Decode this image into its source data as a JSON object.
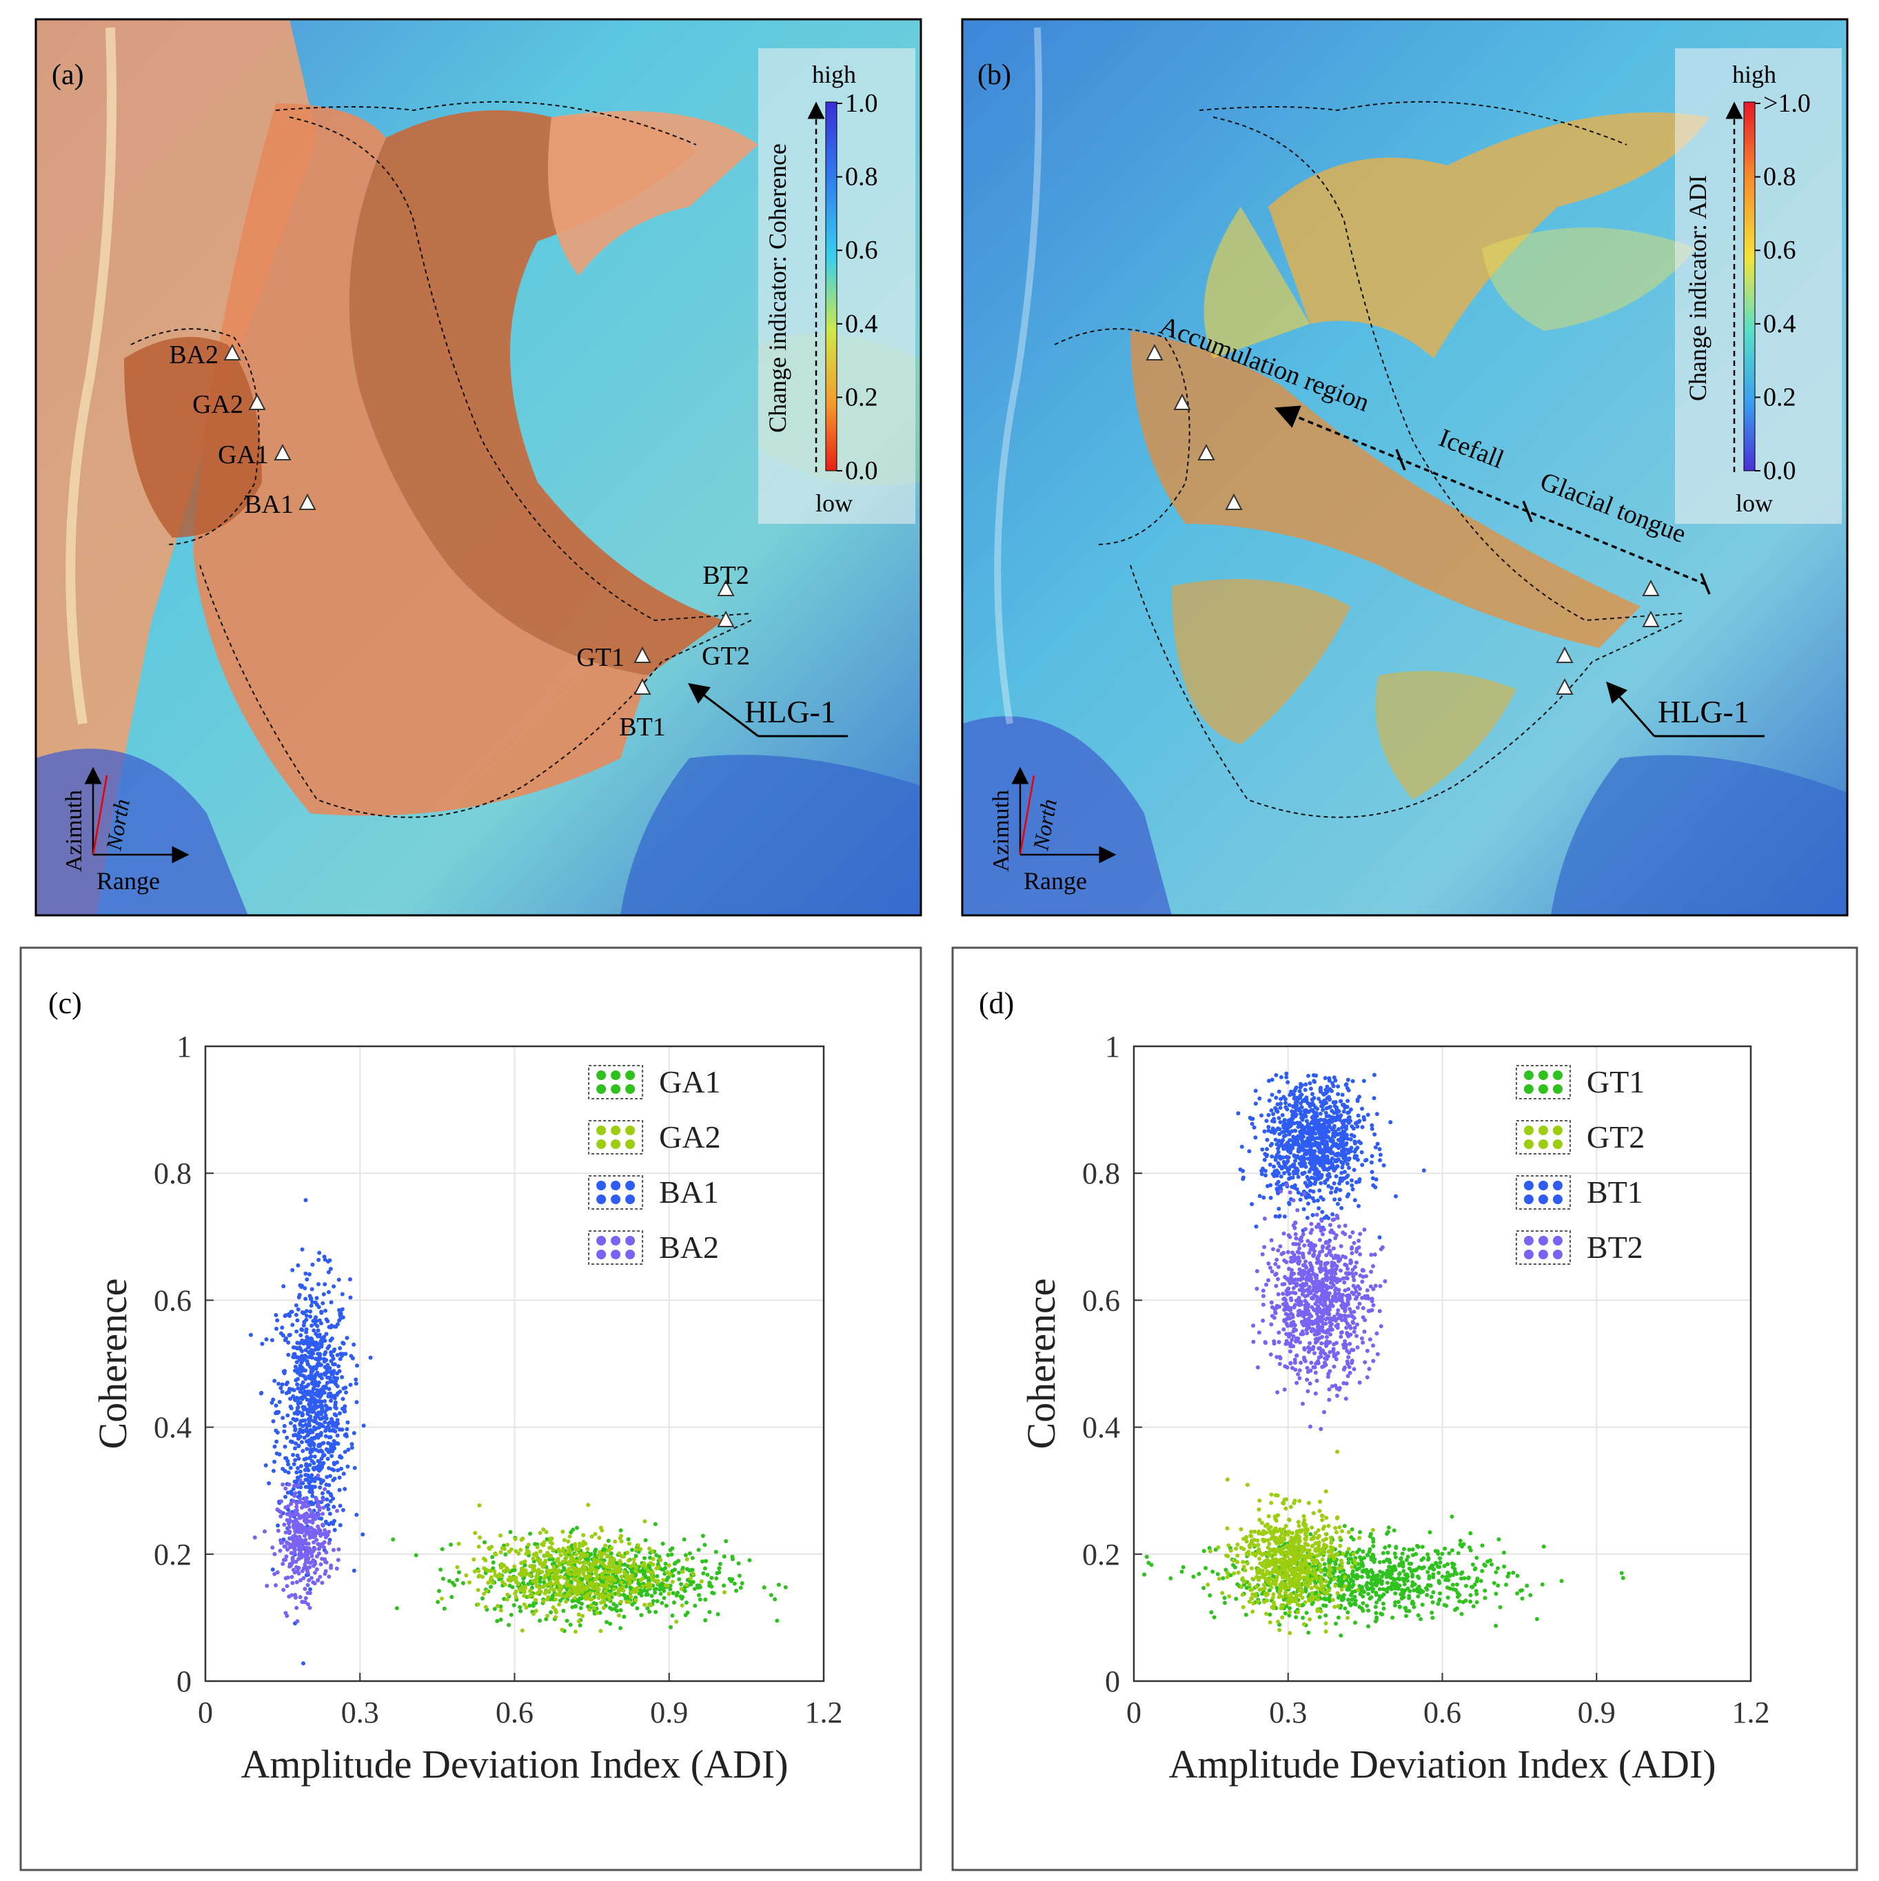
{
  "panels": {
    "a": {
      "label": "(a)"
    },
    "b": {
      "label": "(b)"
    },
    "c": {
      "label": "(c)"
    },
    "d": {
      "label": "(d)"
    }
  },
  "colorbar_a": {
    "title": "Change indicator: Coherence",
    "high": "high",
    "low": "low",
    "ticks": [
      "1.0",
      "0.8",
      "0.6",
      "0.4",
      "0.2",
      "0.0"
    ],
    "colors": [
      "#3a2fd6",
      "#2f7bf0",
      "#38d0ee",
      "#cfe84a",
      "#f59a2b",
      "#e81e14"
    ]
  },
  "colorbar_b": {
    "title": "Change indicator: ADI",
    "high": "high",
    "low": "low",
    "ticks": [
      ">1.0",
      "0.8",
      "0.6",
      "0.4",
      "0.2",
      "0.0"
    ],
    "colors": [
      "#e8182a",
      "#f58a2c",
      "#f5e23a",
      "#58e0c8",
      "#3a9cf0",
      "#4a2fd6"
    ]
  },
  "map_a": {
    "sites": [
      "BA2",
      "GA2",
      "GA1",
      "BA1",
      "BT2",
      "GT1",
      "GT2",
      "BT1"
    ],
    "glacier_label": "HLG-1",
    "axes": {
      "azimuth": "Azimuth",
      "north": "North",
      "range": "Range"
    }
  },
  "map_b": {
    "zones": [
      "Accumulation region",
      "Icefall",
      "Glacial tongue"
    ],
    "glacier_label": "HLG-1",
    "axes": {
      "azimuth": "Azimuth",
      "north": "North",
      "range": "Range"
    }
  },
  "colors": {
    "GA1": "#2fc21e",
    "GA2": "#9ccd10",
    "BA1": "#2f5cf2",
    "BA2": "#7a62f2"
  },
  "chart_data": [
    {
      "type": "scatter",
      "panel": "c",
      "xlabel": "Amplitude Deviation Index (ADI)",
      "ylabel": "Coherence",
      "xlim": [
        0,
        1.2
      ],
      "ylim": [
        0,
        1
      ],
      "xticks": [
        "0",
        "0.3",
        "0.6",
        "0.9",
        "1.2"
      ],
      "yticks": [
        "0",
        "0.2",
        "0.4",
        "0.6",
        "0.8",
        "1"
      ],
      "legend_position": "top-right",
      "series": [
        {
          "name": "GA1",
          "color": "#2fc21e",
          "count": 700,
          "adi_mean": 0.77,
          "adi_sd": 0.12,
          "coh_mean": 0.16,
          "coh_sd": 0.03
        },
        {
          "name": "GA2",
          "color": "#9ccd10",
          "count": 600,
          "adi_mean": 0.71,
          "adi_sd": 0.09,
          "coh_mean": 0.17,
          "coh_sd": 0.03
        },
        {
          "name": "BA1",
          "color": "#2f5cf2",
          "count": 900,
          "adi_mean": 0.21,
          "adi_sd": 0.035,
          "coh_mean": 0.43,
          "coh_sd": 0.1
        },
        {
          "name": "BA2",
          "color": "#7a62f2",
          "count": 350,
          "adi_mean": 0.19,
          "adi_sd": 0.025,
          "coh_mean": 0.22,
          "coh_sd": 0.04
        }
      ]
    },
    {
      "type": "scatter",
      "panel": "d",
      "xlabel": "Amplitude Deviation Index (ADI)",
      "ylabel": "Coherence",
      "xlim": [
        0,
        1.2
      ],
      "ylim": [
        0,
        1
      ],
      "xticks": [
        "0",
        "0.3",
        "0.6",
        "0.9",
        "1.2"
      ],
      "yticks": [
        "0",
        "0.2",
        "0.4",
        "0.6",
        "0.8",
        "1"
      ],
      "legend_position": "top-right",
      "series": [
        {
          "name": "GT1",
          "color": "#2fc21e",
          "count": 800,
          "adi_mean": 0.45,
          "adi_sd": 0.14,
          "coh_mean": 0.16,
          "coh_sd": 0.03
        },
        {
          "name": "GT2",
          "color": "#9ccd10",
          "count": 700,
          "adi_mean": 0.3,
          "adi_sd": 0.05,
          "coh_mean": 0.19,
          "coh_sd": 0.04
        },
        {
          "name": "BT1",
          "color": "#2f5cf2",
          "count": 1000,
          "adi_mean": 0.35,
          "adi_sd": 0.05,
          "coh_mean": 0.85,
          "coh_sd": 0.05
        },
        {
          "name": "BT2",
          "color": "#7a62f2",
          "count": 900,
          "adi_mean": 0.36,
          "adi_sd": 0.05,
          "coh_mean": 0.6,
          "coh_sd": 0.06
        }
      ]
    }
  ]
}
